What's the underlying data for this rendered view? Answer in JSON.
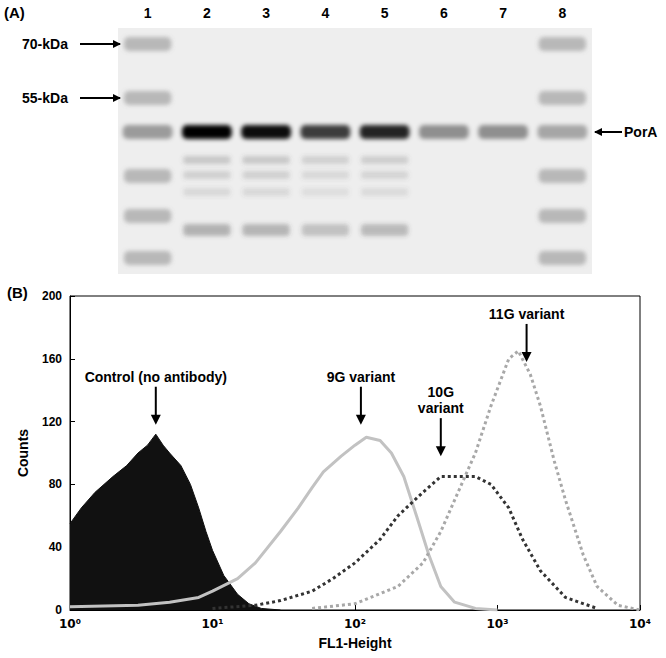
{
  "chart_data": [
    {
      "type": "gel",
      "title": "(A)",
      "lanes": [
        1,
        2,
        3,
        4,
        5,
        6,
        7,
        8
      ],
      "markers": [
        "70-kDa",
        "55-kDa"
      ],
      "band_label": "PorA",
      "band_intensity": [
        0.35,
        1.0,
        0.95,
        0.75,
        0.85,
        0.4,
        0.4,
        0.3
      ]
    },
    {
      "type": "line",
      "title": "(B)",
      "x_label": "FL1-Height",
      "y_label": "Counts",
      "log": "x",
      "grid": false,
      "xlim": [
        1,
        10000
      ],
      "xticks": [
        {
          "value": 1,
          "label": "10⁰"
        },
        {
          "value": 10,
          "label": "10¹"
        },
        {
          "value": 100,
          "label": "10²"
        },
        {
          "value": 1000,
          "label": "10³"
        },
        {
          "value": 10000,
          "label": "10⁴"
        }
      ],
      "ylim": [
        0,
        200
      ],
      "yticks": [
        0,
        40,
        80,
        120,
        160,
        200
      ],
      "series": [
        {
          "name": "Control (no antibody)",
          "type": "area",
          "color": "#111111",
          "line_style": "solid",
          "x": [
            1,
            1.2,
            1.5,
            2,
            2.5,
            3,
            3.5,
            4,
            4.5,
            5,
            6,
            7,
            8,
            9,
            10,
            12,
            15,
            18,
            22,
            30
          ],
          "values": [
            55,
            65,
            75,
            85,
            92,
            100,
            105,
            112,
            105,
            100,
            92,
            80,
            65,
            50,
            38,
            22,
            10,
            4,
            1,
            0
          ],
          "arrow_to": [
            4,
            118
          ]
        },
        {
          "name": "9G variant",
          "type": "line",
          "color": "#c2c2c2",
          "line_style": "solid",
          "x": [
            1,
            3,
            5,
            8,
            10,
            15,
            20,
            30,
            40,
            50,
            60,
            80,
            100,
            120,
            150,
            180,
            220,
            270,
            330,
            400,
            500,
            700,
            1000
          ],
          "values": [
            2,
            3,
            5,
            8,
            12,
            20,
            30,
            50,
            65,
            78,
            88,
            98,
            105,
            110,
            108,
            100,
            85,
            60,
            35,
            15,
            5,
            1,
            0
          ],
          "arrow_to": [
            110,
            118
          ]
        },
        {
          "name": "10G\nvariant",
          "type": "line",
          "color": "#333333",
          "line_style": "dotted",
          "x": [
            10,
            20,
            30,
            50,
            70,
            100,
            150,
            200,
            300,
            400,
            500,
            700,
            900,
            1200,
            1500,
            2000,
            3000,
            5000
          ],
          "values": [
            1,
            3,
            6,
            12,
            20,
            30,
            45,
            60,
            75,
            85,
            85,
            85,
            80,
            65,
            45,
            25,
            8,
            1
          ],
          "arrow_to": [
            400,
            98
          ]
        },
        {
          "name": "11G variant",
          "type": "line",
          "color": "#a8a8a8",
          "line_style": "dotted",
          "x": [
            50,
            100,
            200,
            300,
            400,
            500,
            700,
            900,
            1200,
            1400,
            1700,
            2000,
            2500,
            3000,
            4000,
            5000,
            7000,
            10000
          ],
          "values": [
            1,
            4,
            15,
            30,
            50,
            70,
            100,
            130,
            160,
            165,
            150,
            130,
            95,
            70,
            35,
            15,
            3,
            0
          ],
          "arrow_to": [
            1600,
            158
          ]
        }
      ]
    }
  ]
}
